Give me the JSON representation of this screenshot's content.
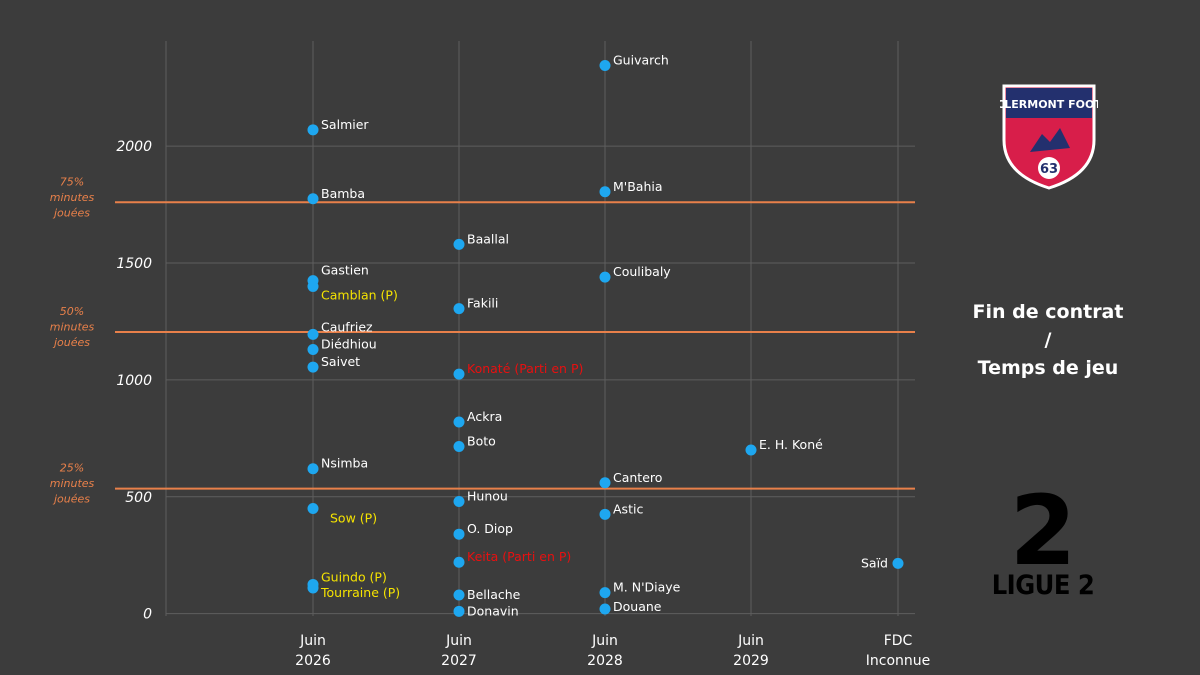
{
  "chart_data": {
    "type": "scatter",
    "title": "",
    "ylim": [
      -10,
      2450
    ],
    "y_ticks": [
      0,
      500,
      1000,
      1500,
      2000
    ],
    "x_categories": [
      {
        "line1": "Juin",
        "line2": "2026"
      },
      {
        "line1": "Juin",
        "line2": "2027"
      },
      {
        "line1": "Juin",
        "line2": "2028"
      },
      {
        "line1": "Juin",
        "line2": "2029"
      },
      {
        "line1": "FDC",
        "line2": "Inconnue"
      }
    ],
    "thresholds": [
      {
        "value": 1760,
        "label_lines": [
          "75%",
          "minutes",
          "jouées"
        ]
      },
      {
        "value": 1205,
        "label_lines": [
          "50%",
          "minutes",
          "jouées"
        ]
      },
      {
        "value": 535,
        "label_lines": [
          "25%",
          "minutes",
          "jouées"
        ]
      }
    ],
    "colors": {
      "point": "#1ea7f0",
      "grid": "#5e5e5e",
      "threshold": "#e8804a",
      "label_default": "#ffffff",
      "label_loan": "#f5e300",
      "label_departed": "#e81010"
    },
    "points": [
      {
        "x": 0,
        "y": 2070,
        "label": "Salmier",
        "status": "default"
      },
      {
        "x": 0,
        "y": 1775,
        "label": "Bamba",
        "status": "default"
      },
      {
        "x": 0,
        "y": 1425,
        "label": "Gastien",
        "status": "default"
      },
      {
        "x": 0,
        "y": 1400,
        "label": "Camblan (P)",
        "status": "loan"
      },
      {
        "x": 0,
        "y": 1195,
        "label": "Caufriez",
        "status": "default"
      },
      {
        "x": 0,
        "y": 1130,
        "label": "Diédhiou",
        "status": "default"
      },
      {
        "x": 0,
        "y": 1055,
        "label": "Saivet",
        "status": "default"
      },
      {
        "x": 0,
        "y": 620,
        "label": "Nsimba",
        "status": "default"
      },
      {
        "x": 0,
        "y": 450,
        "label": "Sow (P)",
        "status": "loan"
      },
      {
        "x": 0,
        "y": 125,
        "label": "Guindo (P)",
        "status": "loan"
      },
      {
        "x": 0,
        "y": 110,
        "label": "Tourraine (P)",
        "status": "loan"
      },
      {
        "x": 1,
        "y": 1580,
        "label": "Baallal",
        "status": "default"
      },
      {
        "x": 1,
        "y": 1305,
        "label": "Fakili",
        "status": "default"
      },
      {
        "x": 1,
        "y": 1025,
        "label": "Konaté (Parti en P)",
        "status": "departed"
      },
      {
        "x": 1,
        "y": 820,
        "label": "Ackra",
        "status": "default"
      },
      {
        "x": 1,
        "y": 715,
        "label": "Boto",
        "status": "default"
      },
      {
        "x": 1,
        "y": 480,
        "label": "Hunou",
        "status": "default"
      },
      {
        "x": 1,
        "y": 340,
        "label": "O. Diop",
        "status": "default"
      },
      {
        "x": 1,
        "y": 220,
        "label": "Keita (Parti en P)",
        "status": "departed"
      },
      {
        "x": 1,
        "y": 80,
        "label": "Bellache",
        "status": "default"
      },
      {
        "x": 1,
        "y": 10,
        "label": "Donavin",
        "status": "default"
      },
      {
        "x": 2,
        "y": 2345,
        "label": "Guivarch",
        "status": "default"
      },
      {
        "x": 2,
        "y": 1805,
        "label": "M'Bahia",
        "status": "default"
      },
      {
        "x": 2,
        "y": 1440,
        "label": "Coulibaly",
        "status": "default"
      },
      {
        "x": 2,
        "y": 560,
        "label": "Cantero",
        "status": "default"
      },
      {
        "x": 2,
        "y": 425,
        "label": "Astic",
        "status": "default"
      },
      {
        "x": 2,
        "y": 90,
        "label": "M. N'Diaye",
        "status": "default"
      },
      {
        "x": 2,
        "y": 20,
        "label": "Douane",
        "status": "default"
      },
      {
        "x": 3,
        "y": 700,
        "label": "E. H. Koné",
        "status": "default"
      },
      {
        "x": 4,
        "y": 215,
        "label": "Saïd",
        "status": "default"
      }
    ]
  },
  "side_title": {
    "line1": "Fin de contrat",
    "line2": "/",
    "line3": "Temps de jeu"
  },
  "logos": {
    "clermont_text": "CLERMONT FOOT",
    "clermont_number": "63",
    "ligue2_number": "2",
    "ligue2_text": "LIGUE 2"
  }
}
